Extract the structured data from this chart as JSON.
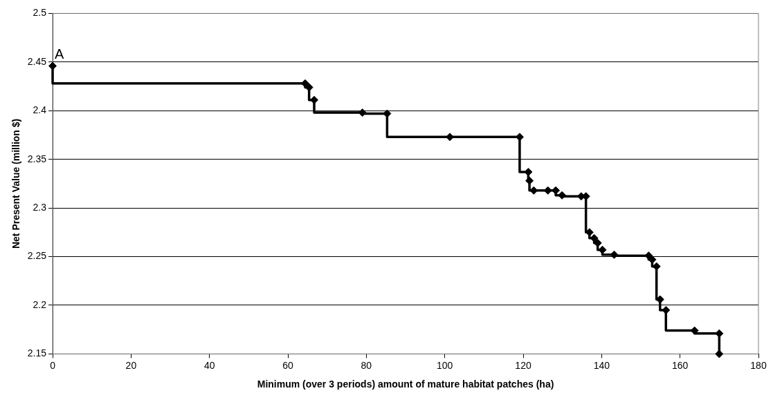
{
  "chart_data": {
    "type": "step",
    "xlabel": "Minimum (over 3 periods) amount of mature habitat patches (ha)",
    "ylabel": "Net Present Value (million $)",
    "xlim": [
      0,
      180
    ],
    "xticks": [
      0,
      20,
      40,
      60,
      80,
      100,
      120,
      140,
      160,
      180
    ],
    "ylim": [
      2.15,
      2.5
    ],
    "yticks": [
      2.15,
      2.2,
      2.25,
      2.3,
      2.35,
      2.4,
      2.45,
      2.5
    ],
    "grid": "y",
    "legend": false,
    "marker": "diamond",
    "line_style": "solid",
    "annotations": [
      {
        "text": "A",
        "x": 0,
        "y": 2.446
      }
    ],
    "series": [
      {
        "color": "#000000",
        "x": [
          0,
          64.4,
          65.4,
          66.7,
          79.0,
          85.3,
          101.3,
          119.1,
          121.3,
          121.6,
          122.7,
          126.3,
          128.3,
          129.9,
          134.8,
          136.0,
          136.9,
          138.1,
          139.0,
          140.2,
          143.2,
          152.0,
          152.9,
          154.0,
          154.9,
          156.4,
          163.7,
          170.0,
          170.0
        ],
        "values": [
          2.446,
          2.428,
          2.424,
          2.411,
          2.398,
          2.397,
          2.373,
          2.373,
          2.337,
          2.328,
          2.318,
          2.318,
          2.318,
          2.313,
          2.312,
          2.312,
          2.275,
          2.269,
          2.264,
          2.257,
          2.252,
          2.251,
          2.247,
          2.24,
          2.206,
          2.195,
          2.174,
          2.171,
          2.15
        ]
      }
    ]
  }
}
